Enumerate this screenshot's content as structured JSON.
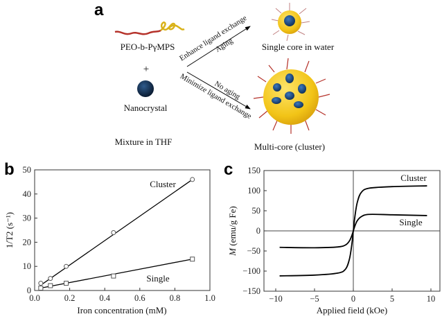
{
  "panel_a": {
    "label": "a",
    "polymer_label": "PEO-b-PγMPS",
    "plus": "+",
    "nanocrystal_label": "Nanocrystal",
    "mixture_label": "Mixture in THF",
    "upper_arrow_top": "Enhance ligand exchange",
    "upper_arrow_bottom": "Aging",
    "lower_arrow_top": "No aging",
    "lower_arrow_bottom": "Minimize ligand exchange",
    "single_core_label": "Single core in water",
    "multi_core_label": "Multi-core (cluster)",
    "colors": {
      "shell": "#f2c417",
      "core": "#1b4f86",
      "chain": "#b5322a"
    }
  },
  "chart_data": [
    {
      "panel_label": "b",
      "type": "scatter",
      "xlabel": "Iron concentration (mM)",
      "ylabel": "1/T2 (s⁻¹)",
      "xlim": [
        0,
        1.0
      ],
      "ylim": [
        0,
        50
      ],
      "xticks": [
        "0.0",
        "0.2",
        "0.4",
        "0.6",
        "0.8",
        "1.0"
      ],
      "yticks": [
        "0",
        "10",
        "20",
        "30",
        "40",
        "50"
      ],
      "grid": false,
      "series": [
        {
          "name": "Cluster",
          "marker": "circle",
          "x": [
            0.035,
            0.09,
            0.18,
            0.45,
            0.9
          ],
          "y": [
            3,
            5,
            10,
            24,
            46
          ],
          "fit": [
            [
              0.035,
              2.2
            ],
            [
              0.9,
              46
            ]
          ]
        },
        {
          "name": "Single",
          "marker": "square",
          "x": [
            0.035,
            0.09,
            0.18,
            0.45,
            0.9
          ],
          "y": [
            1,
            2,
            3,
            6,
            13
          ],
          "fit": [
            [
              0.035,
              1.0
            ],
            [
              0.9,
              13
            ]
          ]
        }
      ]
    },
    {
      "panel_label": "c",
      "type": "line",
      "xlabel": "Applied field (kOe)",
      "ylabel": "M (emu/g Fe)",
      "xlim": [
        -11,
        11
      ],
      "ylim": [
        -150,
        150
      ],
      "xticks": [
        "−10",
        "−5",
        "0",
        "5",
        "10"
      ],
      "yticks": [
        "150",
        "100",
        "50",
        "0",
        "−50",
        "−100",
        "−150"
      ],
      "grid": false,
      "x": [
        -9.5,
        -5,
        -2,
        -1,
        -0.5,
        -0.2,
        0,
        0.2,
        0.5,
        1,
        2,
        5,
        9.5
      ],
      "series": [
        {
          "name": "Cluster",
          "values": [
            -112,
            -110,
            -105,
            -95,
            -70,
            -35,
            0,
            35,
            70,
            95,
            106,
            110,
            112
          ]
        },
        {
          "name": "Single",
          "values": [
            -41,
            -42,
            -40,
            -35,
            -25,
            -12,
            0,
            12,
            25,
            35,
            41,
            40,
            38
          ]
        }
      ]
    }
  ]
}
